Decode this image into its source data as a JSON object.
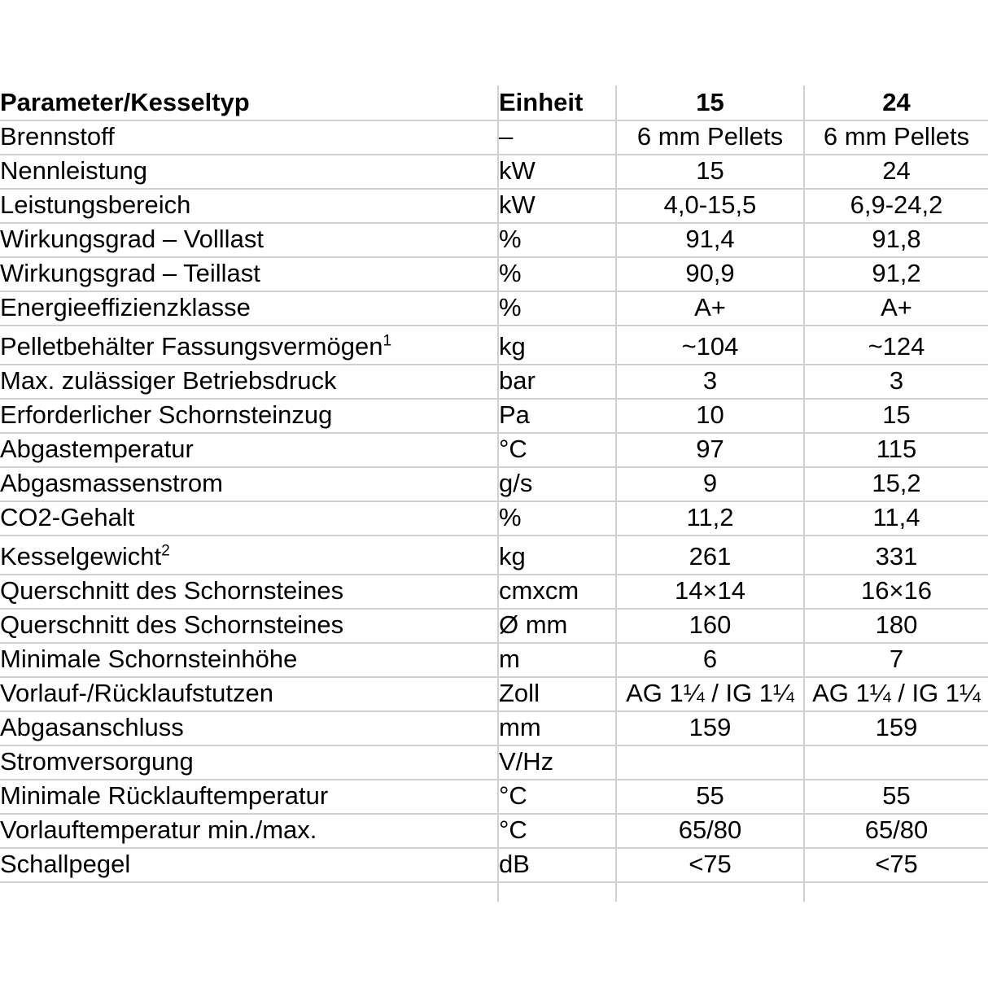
{
  "table": {
    "header": {
      "parameter": "Parameter/Kesseltyp",
      "unit": "Einheit",
      "model_15": "15",
      "model_24": "24"
    },
    "rows": [
      {
        "parameter": "Brennstoff",
        "unit": "–",
        "v15": "6 mm Pellets",
        "v24": "6 mm Pellets"
      },
      {
        "parameter": "Nennleistung",
        "unit": "kW",
        "v15": "15",
        "v24": "24"
      },
      {
        "parameter": "Leistungsbereich",
        "unit": "kW",
        "v15": "4,0-15,5",
        "v24": "6,9-24,2"
      },
      {
        "parameter": "Wirkungsgrad – Volllast",
        "unit": "%",
        "v15": "91,4",
        "v24": "91,8"
      },
      {
        "parameter": "Wirkungsgrad – Teillast",
        "unit": "%",
        "v15": "90,9",
        "v24": "91,2"
      },
      {
        "parameter": "Energieeffizienzklasse",
        "unit": "%",
        "v15": "A+",
        "v24": "A+"
      },
      {
        "parameter": "Pelletbehälter Fassungsvermögen",
        "sup": "1",
        "unit": "kg",
        "v15": "~104",
        "v24": "~124"
      },
      {
        "parameter": "Max. zulässiger Betriebsdruck",
        "unit": "bar",
        "v15": "3",
        "v24": "3"
      },
      {
        "parameter": "Erforderlicher Schornsteinzug",
        "unit": "Pa",
        "v15": "10",
        "v24": "15"
      },
      {
        "parameter": "Abgastemperatur",
        "unit": "°C",
        "v15": "97",
        "v24": "115"
      },
      {
        "parameter": "Abgasmassenstrom",
        "unit": "g/s",
        "v15": "9",
        "v24": "15,2"
      },
      {
        "parameter": "CO2-Gehalt",
        "unit": "%",
        "v15": "11,2",
        "v24": "11,4"
      },
      {
        "parameter": "Kesselgewicht",
        "sup": "2",
        "unit": "kg",
        "v15": "261",
        "v24": "331"
      },
      {
        "parameter": "Querschnitt des Schornsteines",
        "unit": "cmxcm",
        "v15": "14×14",
        "v24": "16×16"
      },
      {
        "parameter": "Querschnitt des Schornsteines",
        "unit": "Ø mm",
        "v15": "160",
        "v24": "180"
      },
      {
        "parameter": "Minimale Schornsteinhöhe",
        "unit": "m",
        "v15": "6",
        "v24": "7"
      },
      {
        "parameter": "Vorlauf-/Rücklaufstutzen",
        "unit": "Zoll",
        "v15": "AG 1¼ / IG 1¼",
        "v24": "AG 1¼ / IG 1¼"
      },
      {
        "parameter": "Abgasanschluss",
        "unit": "mm",
        "v15": "159",
        "v24": "159"
      },
      {
        "parameter": "Stromversorgung",
        "unit": "V/Hz",
        "v15": "",
        "v24": ""
      },
      {
        "parameter": "Minimale Rücklauftemperatur",
        "unit": "°C",
        "v15": "55",
        "v24": "55"
      },
      {
        "parameter": "Vorlauftemperatur min./max.",
        "unit": "°C",
        "v15": "65/80",
        "v24": "65/80"
      },
      {
        "parameter": "Schallpegel",
        "unit": "dB",
        "v15": "<75",
        "v24": "<75"
      }
    ]
  },
  "colors": {
    "grid": "#d0d0d0",
    "text": "#000000",
    "background": "#ffffff"
  }
}
